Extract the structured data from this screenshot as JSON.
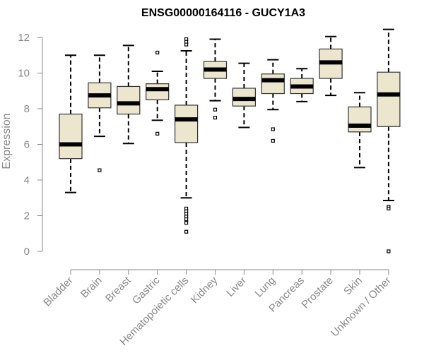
{
  "chart_data": {
    "type": "boxplot",
    "title": "ENSG00000164116 - GUCY1A3",
    "xlabel": "",
    "ylabel": "Expression",
    "ylim": [
      0,
      12
    ],
    "yticks": [
      0,
      2,
      4,
      6,
      8,
      10,
      12
    ],
    "categories": [
      "Bladder",
      "Brain",
      "Breast",
      "Gastric",
      "Hematopoietic cells",
      "Kidney",
      "Liver",
      "Lung",
      "Pancreas",
      "Prostate",
      "Skin",
      "Unknown / Other"
    ],
    "boxes": [
      {
        "category": "Bladder",
        "whisker_low": 3.3,
        "q1": 5.2,
        "median": 6.0,
        "q3": 7.7,
        "whisker_high": 11.0,
        "outliers": []
      },
      {
        "category": "Brain",
        "whisker_low": 6.45,
        "q1": 8.05,
        "median": 8.75,
        "q3": 9.45,
        "whisker_high": 11.0,
        "outliers": [
          4.55
        ]
      },
      {
        "category": "Breast",
        "whisker_low": 6.05,
        "q1": 7.7,
        "median": 8.3,
        "q3": 9.25,
        "whisker_high": 11.55,
        "outliers": []
      },
      {
        "category": "Gastric",
        "whisker_low": 7.35,
        "q1": 8.5,
        "median": 9.1,
        "q3": 9.4,
        "whisker_high": 10.1,
        "outliers": [
          11.15,
          6.6
        ]
      },
      {
        "category": "Hematopoietic cells",
        "whisker_low": 3.0,
        "q1": 6.1,
        "median": 7.4,
        "q3": 8.2,
        "whisker_high": 11.25,
        "outliers": [
          11.9,
          11.75,
          11.6,
          2.4,
          2.25,
          2.1,
          1.95,
          1.8,
          1.6,
          1.1
        ]
      },
      {
        "category": "Kidney",
        "whisker_low": 8.45,
        "q1": 9.7,
        "median": 10.2,
        "q3": 10.65,
        "whisker_high": 11.9,
        "outliers": [
          7.95,
          7.5
        ]
      },
      {
        "category": "Liver",
        "whisker_low": 6.95,
        "q1": 8.15,
        "median": 8.55,
        "q3": 9.15,
        "whisker_high": 10.55,
        "outliers": []
      },
      {
        "category": "Lung",
        "whisker_low": 7.95,
        "q1": 8.85,
        "median": 9.6,
        "q3": 9.95,
        "whisker_high": 10.75,
        "outliers": [
          6.85,
          6.2
        ]
      },
      {
        "category": "Pancreas",
        "whisker_low": 8.4,
        "q1": 8.85,
        "median": 9.25,
        "q3": 9.7,
        "whisker_high": 10.25,
        "outliers": []
      },
      {
        "category": "Prostate",
        "whisker_low": 8.75,
        "q1": 9.7,
        "median": 10.6,
        "q3": 11.35,
        "whisker_high": 12.05,
        "outliers": []
      },
      {
        "category": "Skin",
        "whisker_low": 4.7,
        "q1": 6.7,
        "median": 7.05,
        "q3": 8.1,
        "whisker_high": 8.9,
        "outliers": []
      },
      {
        "category": "Unknown / Other",
        "whisker_low": 2.85,
        "q1": 7.0,
        "median": 8.8,
        "q3": 10.05,
        "whisker_high": 12.45,
        "outliers": [
          2.5,
          2.4,
          0.0
        ]
      }
    ]
  },
  "colors": {
    "box_fill": "#ede6cf",
    "axis": "#888888",
    "marks": "#000000"
  }
}
